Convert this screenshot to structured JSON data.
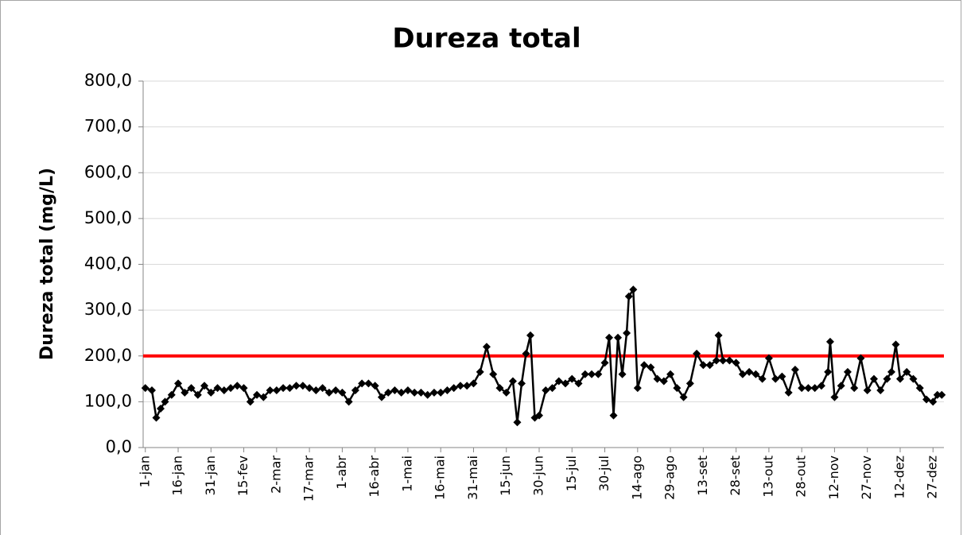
{
  "chart_data": {
    "type": "line",
    "title": "Dureza total",
    "y_label": "Dureza total (mg/L)",
    "x": [
      1,
      4,
      6,
      8,
      10,
      13,
      16,
      19,
      22,
      25,
      28,
      31,
      34,
      37,
      40,
      43,
      46,
      49,
      52,
      55,
      58,
      61,
      64,
      67,
      70,
      73,
      76,
      79,
      82,
      85,
      88,
      91,
      94,
      97,
      100,
      103,
      106,
      109,
      112,
      115,
      118,
      121,
      124,
      127,
      130,
      133,
      136,
      139,
      142,
      145,
      148,
      151,
      154,
      157,
      160,
      163,
      166,
      169,
      171,
      173,
      175,
      177,
      179,
      181,
      184,
      187,
      190,
      193,
      196,
      199,
      202,
      205,
      208,
      211,
      213,
      215,
      217,
      219,
      221,
      222,
      224,
      226,
      229,
      232,
      235,
      238,
      241,
      244,
      247,
      250,
      253,
      256,
      259,
      262,
      263,
      265,
      268,
      271,
      274,
      277,
      280,
      283,
      286,
      289,
      292,
      295,
      298,
      301,
      304,
      307,
      310,
      313,
      314,
      316,
      319,
      322,
      325,
      328,
      331,
      334,
      337,
      340,
      342,
      344,
      346,
      349,
      352,
      355,
      358,
      361,
      363,
      365
    ],
    "series": [
      {
        "name": "Dureza total",
        "color": "#000000",
        "values": [
          130,
          125,
          65,
          85,
          100,
          115,
          140,
          120,
          130,
          115,
          135,
          120,
          130,
          125,
          130,
          135,
          130,
          100,
          115,
          110,
          125,
          125,
          130,
          130,
          135,
          135,
          130,
          125,
          130,
          120,
          125,
          120,
          100,
          125,
          140,
          140,
          135,
          110,
          120,
          125,
          120,
          125,
          120,
          120,
          115,
          120,
          120,
          125,
          130,
          135,
          135,
          140,
          165,
          220,
          160,
          130,
          120,
          145,
          55,
          140,
          205,
          245,
          65,
          70,
          125,
          130,
          145,
          140,
          150,
          140,
          160,
          160,
          160,
          185,
          240,
          70,
          240,
          160,
          250,
          330,
          345,
          130,
          180,
          175,
          150,
          145,
          160,
          130,
          110,
          140,
          205,
          180,
          180,
          190,
          245,
          190,
          190,
          185,
          160,
          165,
          160,
          150,
          195,
          150,
          155,
          120,
          170,
          130,
          130,
          130,
          135,
          165,
          231,
          110,
          135,
          165,
          130,
          195,
          125,
          150,
          125,
          150,
          165,
          225,
          150,
          165,
          150,
          130,
          105,
          100,
          115,
          115
        ]
      }
    ],
    "reference_line": {
      "value": 200,
      "color": "#ff0000"
    },
    "xlim": [
      0,
      366
    ],
    "xticks": [
      {
        "value": 1,
        "label": "1-jan"
      },
      {
        "value": 16,
        "label": "16-jan"
      },
      {
        "value": 31,
        "label": "31-jan"
      },
      {
        "value": 46,
        "label": "15-fev"
      },
      {
        "value": 61,
        "label": "2-mar"
      },
      {
        "value": 76,
        "label": "17-mar"
      },
      {
        "value": 91,
        "label": "1-abr"
      },
      {
        "value": 106,
        "label": "16-abr"
      },
      {
        "value": 121,
        "label": "1-mai"
      },
      {
        "value": 136,
        "label": "16-mai"
      },
      {
        "value": 151,
        "label": "31-mai"
      },
      {
        "value": 166,
        "label": "15-jun"
      },
      {
        "value": 181,
        "label": "30-jun"
      },
      {
        "value": 196,
        "label": "15-jul"
      },
      {
        "value": 211,
        "label": "30-jul"
      },
      {
        "value": 226,
        "label": "14-ago"
      },
      {
        "value": 241,
        "label": "29-ago"
      },
      {
        "value": 256,
        "label": "13-set"
      },
      {
        "value": 271,
        "label": "28-set"
      },
      {
        "value": 286,
        "label": "13-out"
      },
      {
        "value": 301,
        "label": "28-out"
      },
      {
        "value": 316,
        "label": "12-nov"
      },
      {
        "value": 331,
        "label": "27-nov"
      },
      {
        "value": 346,
        "label": "12-dez"
      },
      {
        "value": 361,
        "label": "27-dez"
      }
    ],
    "ylim": [
      0,
      800
    ],
    "yticks": [
      {
        "value": 0,
        "label": "0,0"
      },
      {
        "value": 100,
        "label": "100,0"
      },
      {
        "value": 200,
        "label": "200,0"
      },
      {
        "value": 300,
        "label": "300,0"
      },
      {
        "value": 400,
        "label": "400,0"
      },
      {
        "value": 500,
        "label": "500,0"
      },
      {
        "value": 600,
        "label": "600,0"
      },
      {
        "value": 700,
        "label": "700,0"
      },
      {
        "value": 800,
        "label": "800,0"
      }
    ],
    "grid": true
  }
}
